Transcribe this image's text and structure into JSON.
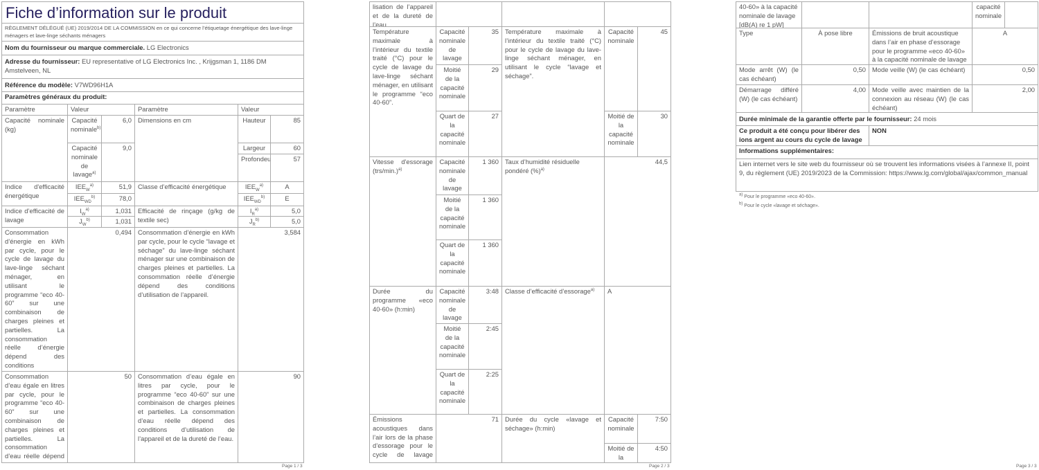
{
  "title": "Fiche d’information sur le produit",
  "regulation": "RÈGLEMENT DÉLÉGUÉ (UE) 2019/2014 DE LA COMMISSION en ce qui concerne l’étiquetage énergétique des lave-linge ménagers et lave-linge séchants ménagers",
  "supplier": {
    "label": "Nom du fournisseur ou marque commerciale.",
    "value": "LG Electronics"
  },
  "address": {
    "label": "Adresse du fournisseur:",
    "value": "EU representative of LG Electronics Inc. , Krijgsman 1, 1186 DM Amstelveen, NL"
  },
  "model": {
    "label": "Référence du modèle:",
    "value": "V7WD96H1A"
  },
  "general_params": "Paramètres généraux du produit:",
  "headers": {
    "param": "Paramètre",
    "value": "Valeur"
  },
  "p1": {
    "capacity": {
      "label": "Capacité nominale (kg)",
      "sub1": {
        "base": "Capacité nominale",
        "sup": "b)"
      },
      "val1": "6,0",
      "sub2": {
        "base": "Capacité nominale de lavage",
        "sup": "a)"
      },
      "val2": "9,0"
    },
    "dimensions": {
      "label": "Dimensions en cm",
      "h_label": "Hauteur",
      "h": "85",
      "w_label": "Largeur",
      "w": "60",
      "d_label": "Profondeur",
      "d": "57"
    },
    "eei": {
      "label": "Indice d'efficacité énergétique",
      "k1": {
        "base": "IEE",
        "sub": "W",
        "sup": "a)"
      },
      "v1": "51,9",
      "k2": {
        "base": "IEE",
        "sub": "WD",
        "sup": "b)"
      },
      "v2": "78,0"
    },
    "energy_class": {
      "label": "Classe d’efficacité énergétique",
      "k1": {
        "base": "IEE",
        "sub": "W",
        "sup": "a)"
      },
      "v1": "A",
      "k2": {
        "base": "IEE",
        "sub": "WD",
        "sup": "b)"
      },
      "v2": "E"
    },
    "wash_index": {
      "label": "Indice d’efficacité de lavage",
      "k1": {
        "base": "I",
        "sub": "W",
        "sup": "a)"
      },
      "v1": "1,031",
      "k2": {
        "base": "J",
        "sub": "W",
        "sup": "b)"
      },
      "v2": "1,031"
    },
    "rinse": {
      "label": "Efficacité de rinçage (g/kg de textile sec)",
      "k1": {
        "base": "I",
        "sub": "R",
        "sup": "a)"
      },
      "v1": "5,0",
      "k2": {
        "base": "J",
        "sub": "R",
        "sup": "b)"
      },
      "v2": "5,0"
    },
    "energy_wash": {
      "label": "Consommation d’énergie en kWh par cycle, pour le cycle de lavage du lave-linge séchant ménager, en utilisant le programme “eco 40-60” sur une combinaison de charges pleines et partielles. La consommation réelle d’énergie dépend des conditions d’utilisation de l’appareil.",
      "value": "0,494"
    },
    "energy_wd": {
      "label": "Consommation d’énergie en kWh par cycle, pour le cycle “lavage et séchage” du lave-linge séchant ménager sur une combinaison de charges pleines et partielles. La consommation réelle d’énergie dépend des conditions d’utilisation de l’appareil.",
      "value": "3,584"
    },
    "water_wash": {
      "label": "Consommation d’eau égale en litres par cycle, pour le programme “eco 40-60” sur une combinaison de charges pleines et partielles. La consommation d’eau réelle dépend des conditions d’uti-",
      "value": "50"
    },
    "water_wd": {
      "label": "Consommation d’eau égale en litres par cycle, pour le programme “eco 40-60” sur une combinaison de charges pleines et partielles. La consommation d’eau réelle dépend des conditions d’utilisation de l’appareil et de la dureté de l’eau.",
      "value": "90"
    },
    "page": "Page 1 / 3"
  },
  "p2": {
    "cont": "lisation de l’appareil et de la dureté de l’eau.",
    "temp_wash": {
      "label": "Température maximale à l’intérieur du textile traité (°C) pour le cycle de lavage du lave-linge séchant ménager, en utilisant le programme “eco 40-60”.",
      "s1": "Capacité nominale de lavage",
      "v1": "35",
      "s2": "Moitié de la capacité nominale",
      "v2": "29",
      "s3": "Quart de la capacité nominale",
      "v3": "27"
    },
    "temp_wd": {
      "label": "Température maximale à l’intérieur du textile traité (°C) pour le cycle de lavage du lave-linge séchant ménager, en utilisant le cycle “lavage et séchage”.",
      "s1": "Capacité nominale",
      "v1": "45",
      "s2": "Moitié de la capacité nominale",
      "v2": "30"
    },
    "spin": {
      "label": {
        "base": "Vitesse d'essorage (trs/min.)",
        "sup": "a)"
      },
      "s1": "Capacité nominale de lavage",
      "v1": "1 360",
      "s2": "Moitié de la capacité nominale",
      "v2": "1 360",
      "s3": "Quart de la capacité nominale",
      "v3": "1 360"
    },
    "moisture": {
      "label": {
        "base": "Taux d’humidité résiduelle pondéré (%)",
        "sup": "a)"
      },
      "value": "44,5"
    },
    "duration": {
      "label": "Durée du programme «eco 40-60» (h:min)",
      "s1": "Capacité nominale de lavage",
      "v1": "3:48",
      "s2": "Moitié de la capacité nominale",
      "v2": "2:45",
      "s3": "Quart de la capacité nominale",
      "v3": "2:25"
    },
    "spin_class": {
      "label": {
        "base": "Classe d’efficacité d’essorage",
        "sup": "a)"
      },
      "value": "A"
    },
    "noise": {
      "label": "Émissions acoustiques dans l’air lors de la phase d’essorage pour le cycle de lavage «eco",
      "value": "71"
    },
    "wd_duration": {
      "label": "Durée du cycle «lavage et séchage» (h:min)",
      "s1": "Capacité nominale",
      "v1": "7:50",
      "s2": "Moitié de la",
      "v2": "4:50"
    },
    "page": "Page 2 / 3"
  },
  "p3": {
    "cont_left": "40-60» à la capacité nominale de lavage [dB(A) re 1 pW]",
    "cont_sub": "capacité nominale",
    "type": {
      "label": "Type",
      "value": "À pose libre"
    },
    "noise_class": {
      "label": "Émissions de bruit acoustique dans l’air en phase d’essorage pour le programme «eco 40-60» à la capacité nominale de lavage",
      "value": "A"
    },
    "off": {
      "label": "Mode arrêt (W) (le cas échéant)",
      "value": "0,50"
    },
    "standby": {
      "label": "Mode veille (W) (le cas échéant)",
      "value": "0,50"
    },
    "delay": {
      "label": "Démarrage différé (W) (le cas échéant)",
      "value": "4,00"
    },
    "networked": {
      "label": "Mode veille avec maintien de la connexion au réseau (W) (le cas échéant)",
      "value": "2,00"
    },
    "warranty": {
      "label": "Durée minimale de la garantie offerte par le fournisseur:",
      "value": "24 mois"
    },
    "silver": {
      "label": "Ce produit a été conçu pour libérer des ions argent au cours du cycle de lavage",
      "value": "NON"
    },
    "extra": "Informations supplémentaires:",
    "link": "Lien internet vers le site web du fournisseur où se trouvent les informations visées à l’annexe II, point 9, du règlement (UE) 2019/2023 de la Commission:  https://www.lg.com/global/ajax/common_manual",
    "fn_a": {
      "sup": "a)",
      "text": "Pour le programme «eco 40-60»."
    },
    "fn_b": {
      "sup": "b)",
      "text": "Pour le cycle «lavage et séchage»."
    },
    "page": "Page 3 / 3"
  }
}
